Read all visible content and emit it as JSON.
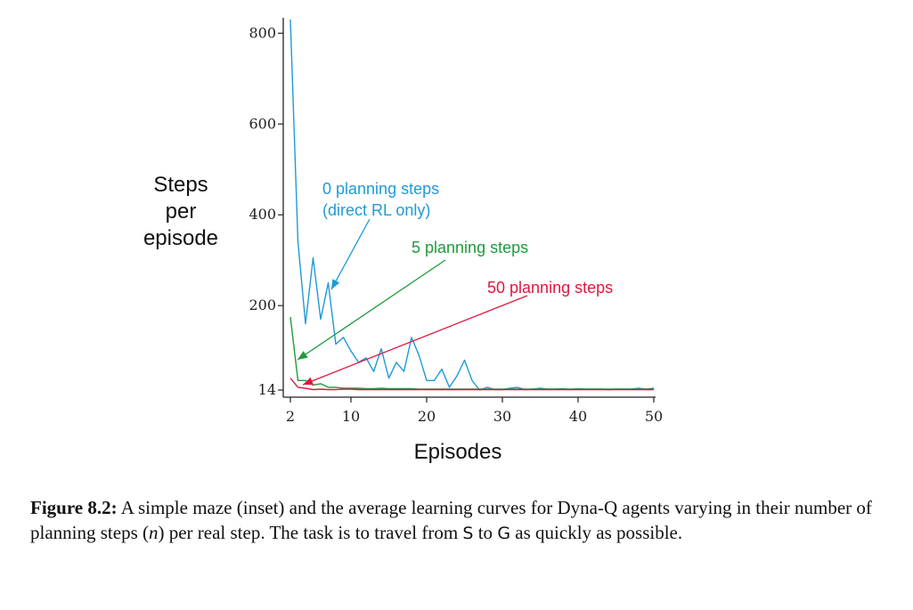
{
  "chart_data": {
    "type": "line",
    "title": "",
    "xlabel": "Episodes",
    "ylabel": "Steps\nper\nepisode",
    "xlim": [
      2,
      50
    ],
    "ylim": [
      14,
      830
    ],
    "xticks": [
      2,
      10,
      20,
      30,
      40,
      50
    ],
    "yticks": [
      14,
      200,
      400,
      600,
      800
    ],
    "grid": false,
    "series": [
      {
        "name": "0 planning steps\n(direct RL only)",
        "color": "#1f9ad6",
        "x": [
          2,
          3,
          4,
          5,
          6,
          7,
          8,
          9,
          10,
          11,
          12,
          13,
          14,
          15,
          16,
          17,
          18,
          19,
          20,
          21,
          22,
          23,
          24,
          25,
          26,
          27,
          28,
          29,
          30,
          31,
          32,
          33,
          34,
          35,
          36,
          37,
          38,
          39,
          40,
          41,
          42,
          43,
          44,
          45,
          46,
          47,
          48,
          49,
          50
        ],
        "y": [
          830,
          340,
          160,
          305,
          170,
          250,
          115,
          130,
          100,
          75,
          85,
          55,
          105,
          40,
          75,
          55,
          130,
          90,
          35,
          35,
          60,
          20,
          45,
          80,
          35,
          14,
          20,
          15,
          15,
          18,
          20,
          15,
          16,
          18,
          16,
          16,
          17,
          15,
          17,
          16,
          16,
          16,
          15,
          16,
          16,
          16,
          18,
          16,
          18
        ]
      },
      {
        "name": "5 planning steps",
        "color": "#1f9a3c",
        "x": [
          2,
          3,
          4,
          5,
          6,
          7,
          8,
          9,
          10,
          11,
          12,
          13,
          14,
          15,
          16,
          17,
          18,
          19,
          20,
          21,
          22,
          23,
          24,
          25,
          26,
          27,
          28,
          29,
          30,
          31,
          32,
          33,
          34,
          35,
          36,
          37,
          38,
          39,
          40,
          41,
          42,
          43,
          44,
          45,
          46,
          47,
          48,
          49,
          50
        ],
        "y": [
          175,
          35,
          35,
          25,
          28,
          20,
          20,
          18,
          18,
          18,
          17,
          17,
          18,
          17,
          17,
          17,
          17,
          16,
          16,
          16,
          16,
          16,
          16,
          16,
          16,
          16,
          16,
          16,
          16,
          16,
          16,
          16,
          16,
          16,
          16,
          16,
          16,
          16,
          16,
          16,
          16,
          16,
          16,
          16,
          16,
          16,
          16,
          16,
          16
        ]
      },
      {
        "name": "50 planning steps",
        "color": "#e0173f",
        "x": [
          2,
          3,
          4,
          5,
          6,
          7,
          8,
          9,
          10,
          11,
          12,
          13,
          14,
          15,
          16,
          17,
          18,
          19,
          20,
          21,
          22,
          23,
          24,
          25,
          26,
          27,
          28,
          29,
          30,
          31,
          32,
          33,
          34,
          35,
          36,
          37,
          38,
          39,
          40,
          41,
          42,
          43,
          44,
          45,
          46,
          47,
          48,
          49,
          50
        ],
        "y": [
          40,
          20,
          18,
          15,
          16,
          15,
          15,
          16,
          16,
          15,
          15,
          15,
          15,
          15,
          15,
          15,
          15,
          15,
          15,
          15,
          15,
          15,
          15,
          15,
          15,
          15,
          15,
          15,
          15,
          15,
          15,
          15,
          15,
          15,
          15,
          15,
          15,
          15,
          15,
          15,
          15,
          15,
          15,
          15,
          15,
          15,
          15,
          15,
          15
        ]
      }
    ],
    "annotations": [
      {
        "lines": [
          "0 planning steps",
          "(direct RL only)"
        ],
        "series": 0
      },
      {
        "lines": [
          "5 planning steps"
        ],
        "series": 1
      },
      {
        "lines": [
          "50 planning steps"
        ],
        "series": 2
      }
    ]
  },
  "caption": {
    "label": "Figure 8.2:",
    "text_1": " A simple maze (inset) and the average learning curves for Dyna-Q agents varying in their number of planning steps (",
    "var": "n",
    "text_2": ") per real step. The task is to travel from ",
    "start": "S",
    "text_3": " to ",
    "goal": "G",
    "text_4": " as quickly as possible."
  }
}
